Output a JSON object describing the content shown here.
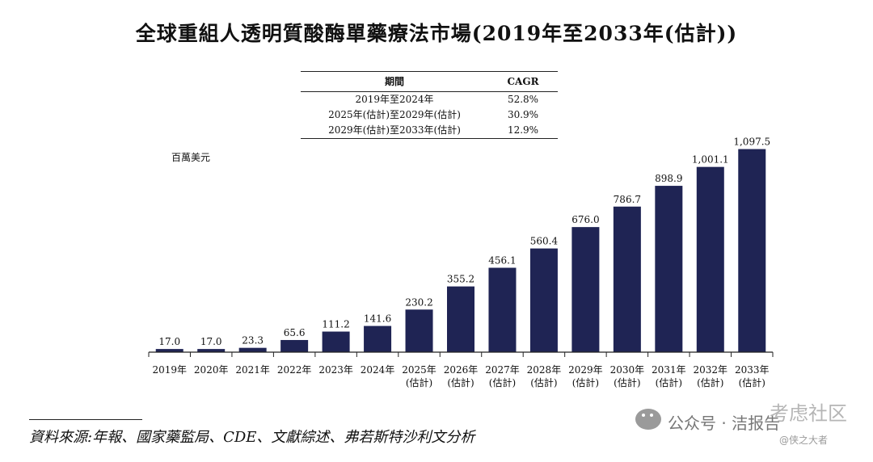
{
  "title": "全球重組人透明質酸酶單藥療法市場(2019年至2033年(估計))",
  "cagr_table": {
    "headers": {
      "period": "期間",
      "cagr": "CAGR"
    },
    "rows": [
      {
        "period": "2019年至2024年",
        "cagr": "52.8%"
      },
      {
        "period": "2025年(估計)至2029年(估計)",
        "cagr": "30.9%"
      },
      {
        "period": "2029年(估計)至2033年(估計)",
        "cagr": "12.9%"
      }
    ]
  },
  "unit_label": "百萬美元",
  "source": "資料來源:年報、國家藥監局、CDE、文獻綜述、弗若斯特沙利文分析",
  "watermark": {
    "wechat": "公众号 · 洁报告",
    "community": "考虑社区",
    "handle": "@侠之大者"
  },
  "colors": {
    "bar": "#1f2454",
    "axis": "#222222",
    "text": "#111111"
  },
  "chart_data": {
    "type": "bar",
    "title": "全球重組人透明質酸酶單藥療法市場(2019年至2033年(估計))",
    "ylabel": "百萬美元",
    "xlabel": "",
    "ylim": [
      0,
      1100
    ],
    "grid": false,
    "categories": [
      [
        "2019年"
      ],
      [
        "2020年"
      ],
      [
        "2021年"
      ],
      [
        "2022年"
      ],
      [
        "2023年"
      ],
      [
        "2024年"
      ],
      [
        "2025年",
        "(估計)"
      ],
      [
        "2026年",
        "(估計)"
      ],
      [
        "2027年",
        "(估計)"
      ],
      [
        "2028年",
        "(估計)"
      ],
      [
        "2029年",
        "(估計)"
      ],
      [
        "2030年",
        "(估計)"
      ],
      [
        "2031年",
        "(估計)"
      ],
      [
        "2032年",
        "(估計)"
      ],
      [
        "2033年",
        "(估計)"
      ]
    ],
    "values": [
      17.0,
      17.0,
      23.3,
      65.6,
      111.2,
      141.6,
      230.2,
      355.2,
      456.1,
      560.4,
      676.0,
      786.7,
      898.9,
      1001.1,
      1097.5
    ],
    "value_labels": [
      "17.0",
      "17.0",
      "23.3",
      "65.6",
      "111.2",
      "141.6",
      "230.2",
      "355.2",
      "456.1",
      "560.4",
      "676.0",
      "786.7",
      "898.9",
      "1,001.1",
      "1,097.5"
    ]
  }
}
